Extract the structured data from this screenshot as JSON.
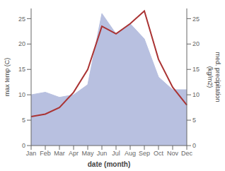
{
  "chart_data": {
    "type": "line",
    "categories": [
      "Jan",
      "Feb",
      "Mar",
      "Apr",
      "May",
      "Jun",
      "Jul",
      "Aug",
      "Sep",
      "Oct",
      "Nov",
      "Dec"
    ],
    "series": [
      {
        "type": "area",
        "axis": "y2",
        "color": "#b8c0e0",
        "values": [
          10.0,
          10.5,
          9.5,
          10.0,
          12.0,
          26.0,
          22.0,
          24.0,
          21.0,
          13.5,
          11.0,
          11.0
        ]
      },
      {
        "type": "line",
        "color": "#aa3333",
        "values": [
          5.7,
          6.2,
          7.5,
          10.5,
          15.0,
          23.5,
          22.0,
          24.0,
          26.5,
          17.0,
          11.5,
          8.0
        ]
      }
    ],
    "xlabel": "date (month)",
    "ylabel": "max temp (C)",
    "y2label": "med. precipitation\n(kg/m2)",
    "ylim": [
      0,
      27
    ],
    "yticks": [
      0,
      5,
      10,
      15,
      20,
      25
    ],
    "y2lim": [
      0,
      27
    ],
    "y2ticks": [
      0,
      5,
      10,
      15,
      20,
      25
    ],
    "grid": false
  }
}
